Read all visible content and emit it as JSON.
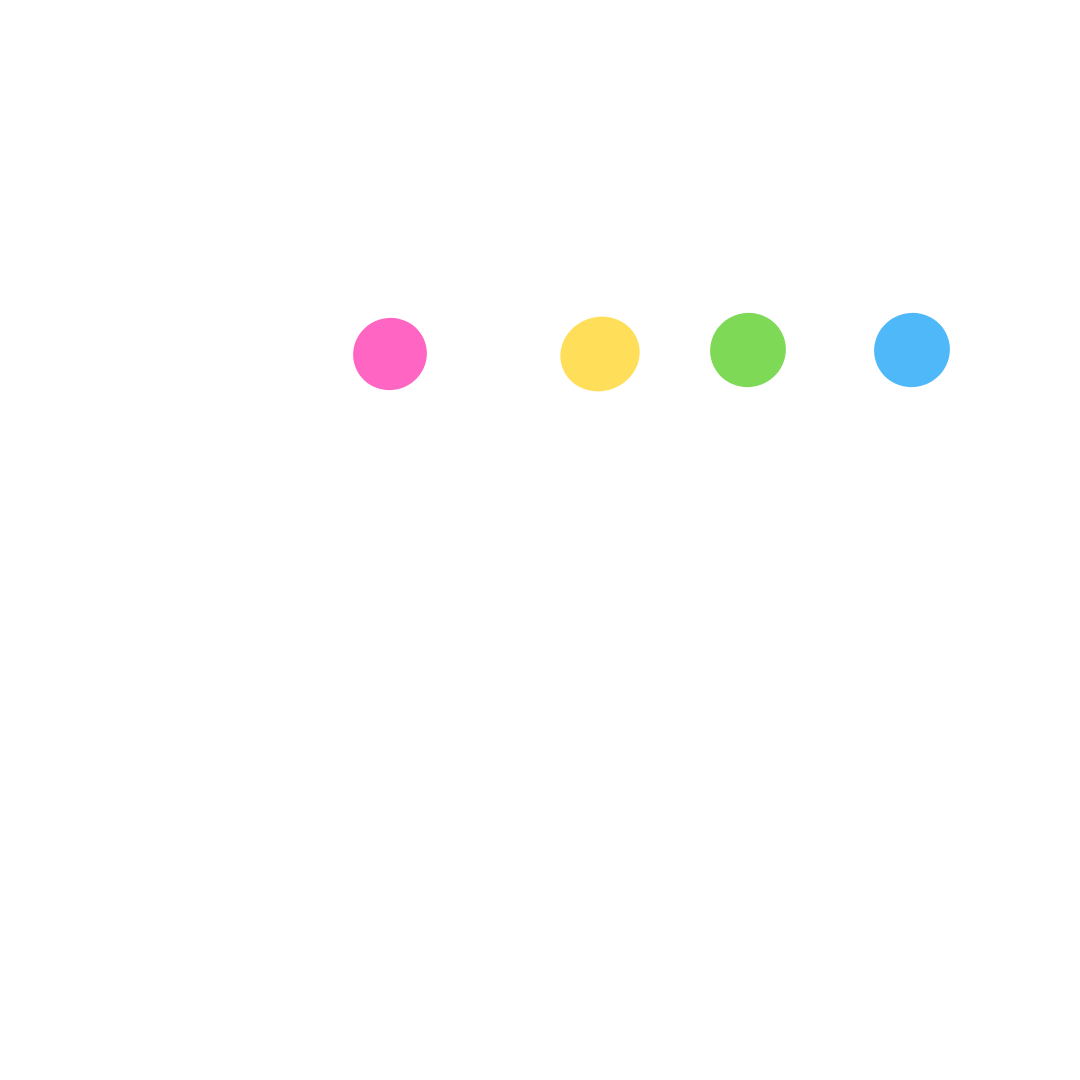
{
  "background_color": "#ffffff",
  "dots": [
    {
      "name": "pink",
      "color": "#FF66C4"
    },
    {
      "name": "yellow",
      "color": "#FFDE59"
    },
    {
      "name": "green",
      "color": "#7ED957"
    },
    {
      "name": "blue",
      "color": "#4FB8F8"
    }
  ]
}
